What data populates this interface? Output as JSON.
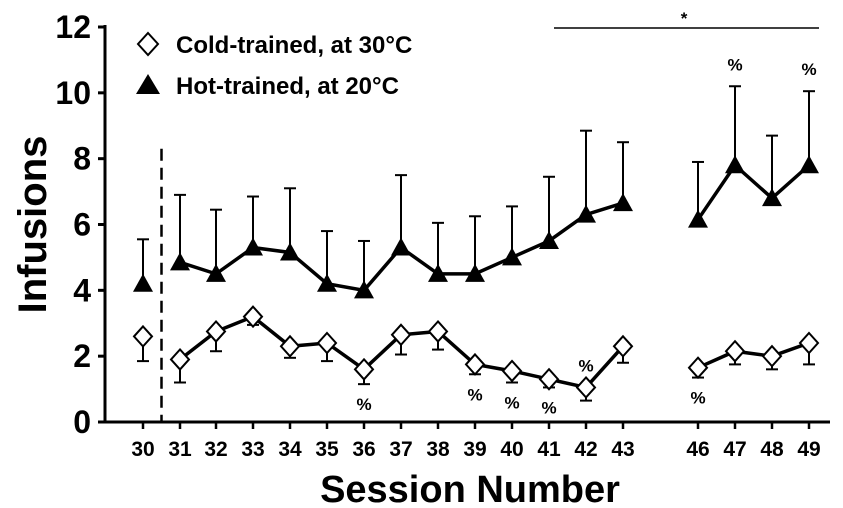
{
  "chart_data": {
    "type": "line",
    "xlabel": "Session Number",
    "ylabel": "Infusions",
    "ylim": [
      0,
      12
    ],
    "yticks": [
      0,
      2,
      4,
      6,
      8,
      10,
      12
    ],
    "x_ticks": [
      "30",
      "31",
      "32",
      "33",
      "34",
      "35",
      "36",
      "37",
      "38",
      "39",
      "40",
      "41",
      "42",
      "43",
      "46",
      "47",
      "48",
      "49"
    ],
    "baseline_divider_after_session": 30,
    "legend": {
      "placement": "top-left",
      "entries": [
        {
          "label": "Cold-trained, at 30°C",
          "marker": "open-diamond"
        },
        {
          "label": "Hot-trained, at 20°C",
          "marker": "filled-triangle"
        }
      ]
    },
    "significance_bar": {
      "label": "*",
      "from": 41,
      "to": 49
    },
    "series": [
      {
        "name": "Cold-trained, at 30°C",
        "marker": "open-diamond",
        "segments": [
          [
            30
          ],
          [
            31,
            32,
            33,
            34,
            35,
            36,
            37,
            38,
            39,
            40,
            41,
            42,
            43
          ],
          [
            46,
            47,
            48,
            49
          ]
        ],
        "x": [
          30,
          31,
          32,
          33,
          34,
          35,
          36,
          37,
          38,
          39,
          40,
          41,
          42,
          43,
          46,
          47,
          48,
          49
        ],
        "y": [
          2.6,
          1.9,
          2.75,
          3.2,
          2.3,
          2.4,
          1.6,
          2.65,
          2.75,
          1.75,
          1.55,
          1.3,
          1.05,
          2.3,
          1.65,
          2.15,
          2.0,
          2.4
        ],
        "err": [
          0.75,
          0.7,
          0.6,
          0.25,
          0.35,
          0.55,
          0.45,
          0.6,
          0.55,
          0.3,
          0.35,
          0.25,
          0.4,
          0.5,
          0.3,
          0.4,
          0.4,
          0.65
        ],
        "err_direction": "down"
      },
      {
        "name": "Hot-trained, at 20°C",
        "marker": "filled-triangle",
        "segments": [
          [
            30
          ],
          [
            31,
            32,
            33,
            34,
            35,
            36,
            37,
            38,
            39,
            40,
            41,
            42,
            43
          ],
          [
            46,
            47,
            48,
            49
          ]
        ],
        "x": [
          30,
          31,
          32,
          33,
          34,
          35,
          36,
          37,
          38,
          39,
          40,
          41,
          42,
          43,
          46,
          47,
          48,
          49
        ],
        "y": [
          4.2,
          4.85,
          4.5,
          5.3,
          5.15,
          4.2,
          4.0,
          5.3,
          4.5,
          4.5,
          5.0,
          5.5,
          6.3,
          6.65,
          6.15,
          7.8,
          6.8,
          7.8
        ],
        "err": [
          1.35,
          2.05,
          1.95,
          1.55,
          1.95,
          1.6,
          1.5,
          2.2,
          1.55,
          1.75,
          1.55,
          1.95,
          2.55,
          1.85,
          1.75,
          2.4,
          1.9,
          2.25
        ],
        "err_direction": "up"
      }
    ],
    "annotations": [
      {
        "text": "%",
        "session": 36,
        "series": "Cold-trained, at 30°C",
        "position": "below"
      },
      {
        "text": "%",
        "session": 39,
        "series": "Cold-trained, at 30°C",
        "position": "below"
      },
      {
        "text": "%",
        "session": 40,
        "series": "Cold-trained, at 30°C",
        "position": "below"
      },
      {
        "text": "%",
        "session": 41,
        "series": "Cold-trained, at 30°C",
        "position": "below"
      },
      {
        "text": "%",
        "session": 42,
        "series": "Cold-trained, at 30°C",
        "position": "above"
      },
      {
        "text": "%",
        "session": 46,
        "series": "Cold-trained, at 30°C",
        "position": "below"
      },
      {
        "text": "%",
        "session": 47,
        "series": "Hot-trained, at 20°C",
        "position": "above"
      },
      {
        "text": "%",
        "session": 49,
        "series": "Hot-trained, at 20°C",
        "position": "above"
      }
    ]
  }
}
